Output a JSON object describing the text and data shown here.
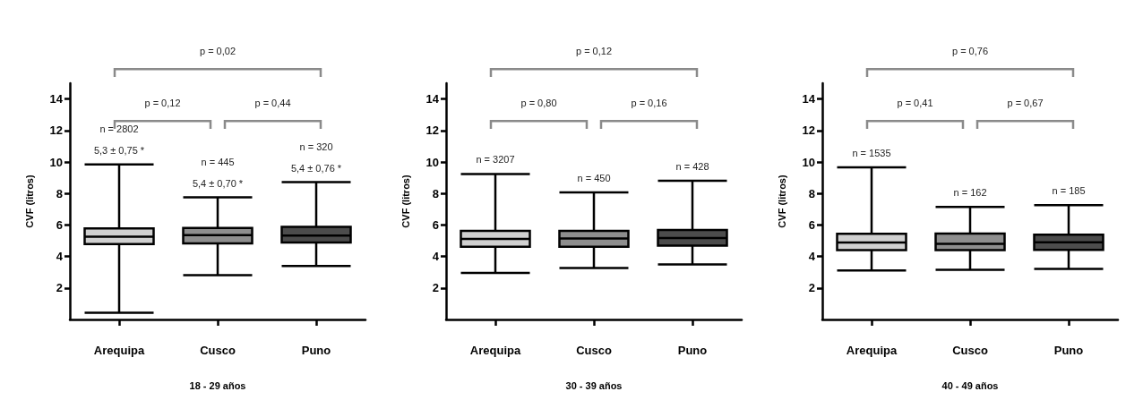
{
  "chart_data": [
    {
      "type": "box",
      "xlabel": "18 - 29 años",
      "ylabel": "CVF (litros)",
      "categories": [
        "Arequipa",
        "Cusco",
        "Puno"
      ],
      "colors": [
        "#d0d0d0",
        "#8e8e8e",
        "#4c4c4c"
      ],
      "ylim": [
        0,
        15
      ],
      "yticks": [
        2,
        4,
        6,
        8,
        10,
        12,
        14
      ],
      "grid": false,
      "boxes": [
        {
          "low": 0.42,
          "q1": 4.78,
          "median": 5.26,
          "q3": 5.78,
          "high": 9.84
        },
        {
          "low": 2.81,
          "q1": 4.83,
          "median": 5.35,
          "q3": 5.81,
          "high": 7.75
        },
        {
          "low": 3.4,
          "q1": 4.88,
          "median": 5.33,
          "q3": 5.88,
          "high": 8.72
        }
      ],
      "annotations": [
        "p = 0,12",
        "p = 0,44",
        "p = 0,02",
        "n = 2802",
        "5,3 ± 0,75 *",
        "n = 445",
        "5,4 ± 0,70 *",
        "n = 320",
        "5,4 ± 0,76 *"
      ]
    },
    {
      "type": "box",
      "xlabel": "30 - 39 años",
      "ylabel": "CVF (litros)",
      "categories": [
        "Arequipa",
        "Cusco",
        "Puno"
      ],
      "colors": [
        "#d0d0d0",
        "#8e8e8e",
        "#4c4c4c"
      ],
      "ylim": [
        0,
        15
      ],
      "yticks": [
        2,
        4,
        6,
        8,
        10,
        12,
        14
      ],
      "grid": false,
      "boxes": [
        {
          "low": 2.96,
          "q1": 4.61,
          "median": 5.11,
          "q3": 5.63,
          "high": 9.24
        },
        {
          "low": 3.26,
          "q1": 4.61,
          "median": 5.14,
          "q3": 5.62,
          "high": 8.07
        },
        {
          "low": 3.5,
          "q1": 4.69,
          "median": 5.17,
          "q3": 5.68,
          "high": 8.8
        }
      ],
      "annotations": [
        "p = 0,80",
        "p = 0,16",
        "p = 0,12",
        "n = 3207",
        "n = 450",
        "n = 428"
      ]
    },
    {
      "type": "box",
      "xlabel": "40 - 49 años",
      "ylabel": "CVF (litros)",
      "categories": [
        "Arequipa",
        "Cusco",
        "Puno"
      ],
      "colors": [
        "#d0d0d0",
        "#8e8e8e",
        "#4c4c4c"
      ],
      "ylim": [
        0,
        15
      ],
      "yticks": [
        2,
        4,
        6,
        8,
        10,
        12,
        14
      ],
      "grid": false,
      "boxes": [
        {
          "low": 3.11,
          "q1": 4.4,
          "median": 4.88,
          "q3": 5.44,
          "high": 9.66
        },
        {
          "low": 3.16,
          "q1": 4.41,
          "median": 4.8,
          "q3": 5.46,
          "high": 7.15
        },
        {
          "low": 3.21,
          "q1": 4.42,
          "median": 4.9,
          "q3": 5.39,
          "high": 7.26
        }
      ],
      "annotations": [
        "p = 0,41",
        "p = 0,67",
        "p = 0,76",
        "n = 1535",
        "n = 162",
        "n = 185"
      ]
    }
  ]
}
